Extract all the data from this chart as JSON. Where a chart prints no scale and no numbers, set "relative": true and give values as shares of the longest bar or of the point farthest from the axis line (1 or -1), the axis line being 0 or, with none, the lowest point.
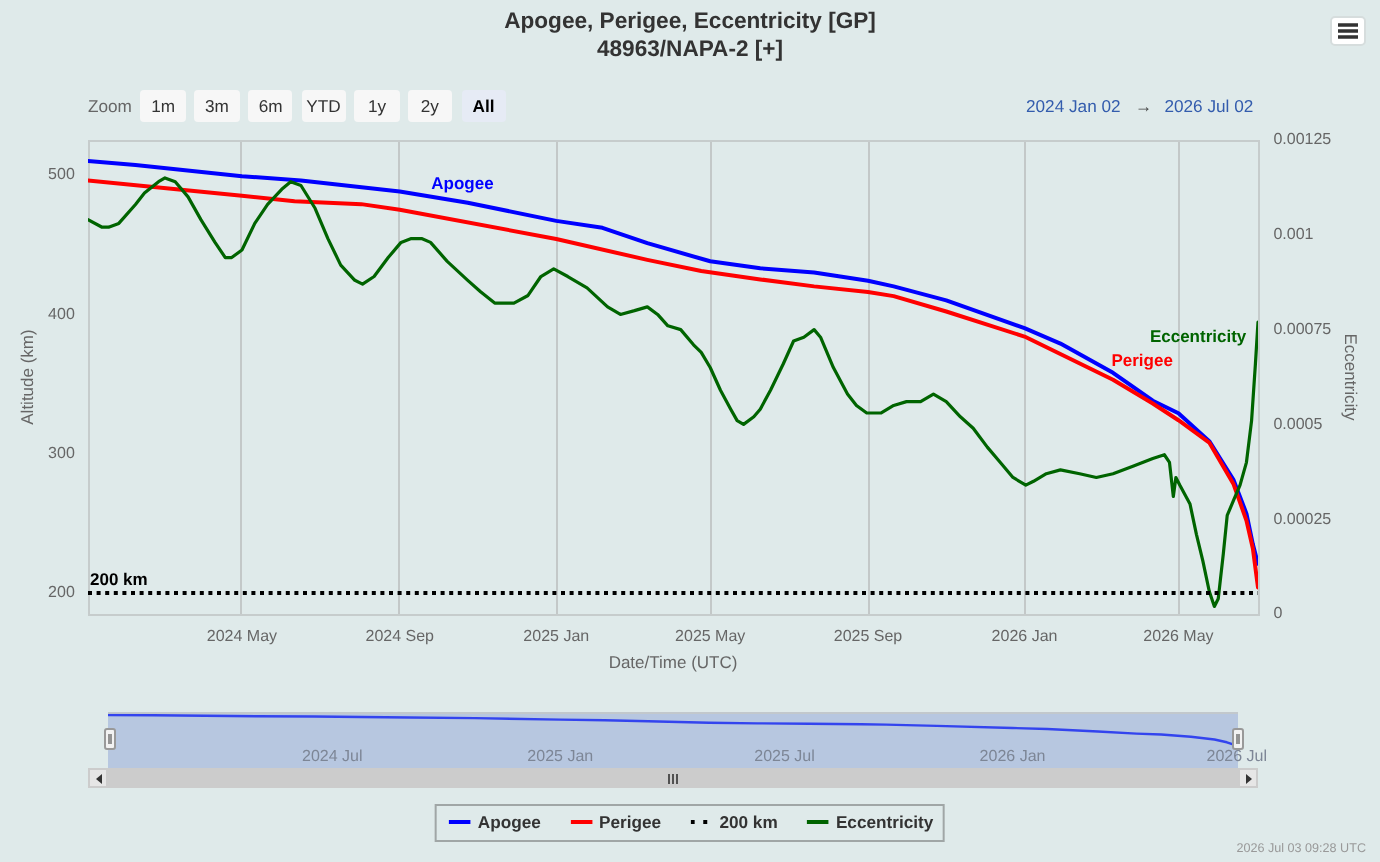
{
  "chart_data": [
    {
      "type": "line",
      "title": "Apogee, Perigee, Eccentricity [GP]",
      "subtitle": "48963/NAPA-2 [+]",
      "xlabel": "Date/Time (UTC)",
      "ylabel": "Altitude (km)",
      "y2label": "Eccentricity",
      "series": [
        {
          "name": "Apogee",
          "color": "#0000ff",
          "x": [
            "2024-01-02",
            "2024-02-08",
            "2024-05-01",
            "2024-06-16",
            "2024-09-01",
            "2024-10-24",
            "2025-01-01",
            "2025-02-06",
            "2025-03-13",
            "2025-05-01",
            "2025-06-09",
            "2025-07-21",
            "2025-09-01",
            "2025-09-21",
            "2025-11-01",
            "2026-01-01",
            "2026-01-29",
            "2026-03-11",
            "2026-04-11",
            "2026-05-01",
            "2026-05-25",
            "2026-06-13",
            "2026-06-23",
            "2026-06-28",
            "2026-07-02"
          ],
          "values": [
            510,
            507,
            499,
            496,
            488,
            480,
            467,
            462,
            451,
            438,
            433,
            430,
            424,
            420,
            410,
            390,
            379,
            358,
            338,
            329,
            309,
            281,
            257,
            235,
            221
          ]
        },
        {
          "name": "Perigee",
          "color": "#ff0000",
          "x": [
            "2024-01-02",
            "2024-05-01",
            "2024-06-11",
            "2024-08-02",
            "2024-09-01",
            "2025-01-01",
            "2025-03-13",
            "2025-04-24",
            "2025-06-09",
            "2025-07-21",
            "2025-09-01",
            "2025-09-21",
            "2025-11-01",
            "2026-01-01",
            "2026-03-11",
            "2026-04-11",
            "2026-05-01",
            "2026-05-25",
            "2026-06-13",
            "2026-06-23",
            "2026-06-28",
            "2026-07-02"
          ],
          "values": [
            496,
            485,
            481,
            479,
            475,
            454,
            439,
            431,
            425,
            420,
            416,
            413,
            402,
            384,
            353,
            336,
            324,
            308,
            278,
            252,
            232,
            204
          ]
        },
        {
          "name": "Eccentricity",
          "color": "#006400",
          "axis": "y2",
          "x": [
            "2024-01-02",
            "2024-01-13",
            "2024-01-18",
            "2024-01-26",
            "2024-02-08",
            "2024-02-15",
            "2024-02-26",
            "2024-03-02",
            "2024-03-10",
            "2024-03-20",
            "2024-03-30",
            "2024-04-10",
            "2024-04-18",
            "2024-04-23",
            "2024-05-01",
            "2024-05-11",
            "2024-05-21",
            "2024-06-01",
            "2024-06-08",
            "2024-06-16",
            "2024-06-27",
            "2024-07-07",
            "2024-07-17",
            "2024-07-28",
            "2024-08-03",
            "2024-08-12",
            "2024-08-23",
            "2024-09-02",
            "2024-09-10",
            "2024-09-18",
            "2024-09-25",
            "2024-10-08",
            "2024-10-24",
            "2024-11-03",
            "2024-11-14",
            "2024-11-29",
            "2024-12-10",
            "2024-12-20",
            "2024-12-30",
            "2025-01-10",
            "2025-01-25",
            "2025-02-10",
            "2025-02-20",
            "2025-03-03",
            "2025-03-13",
            "2025-03-21",
            "2025-03-29",
            "2025-04-08",
            "2025-04-18",
            "2025-04-24",
            "2025-05-01",
            "2025-05-09",
            "2025-05-17",
            "2025-05-22",
            "2025-05-27",
            "2025-06-04",
            "2025-06-09",
            "2025-06-17",
            "2025-06-27",
            "2025-07-05",
            "2025-07-13",
            "2025-07-21",
            "2025-07-26",
            "2025-08-05",
            "2025-08-16",
            "2025-08-23",
            "2025-08-31",
            "2025-09-11",
            "2025-09-21",
            "2025-10-01",
            "2025-10-12",
            "2025-10-22",
            "2025-11-01",
            "2025-11-12",
            "2025-11-22",
            "2025-12-03",
            "2025-12-13",
            "2025-12-23",
            "2026-01-02",
            "2026-01-08",
            "2026-01-18",
            "2026-01-29",
            "2026-02-13",
            "2026-02-26",
            "2026-03-11",
            "2026-03-27",
            "2026-04-11",
            "2026-04-20",
            "2026-04-24",
            "2026-04-27",
            "2026-04-29",
            "2026-05-02",
            "2026-05-10",
            "2026-05-15",
            "2026-05-20",
            "2026-05-25",
            "2026-05-29",
            "2026-06-01",
            "2026-06-05",
            "2026-06-08",
            "2026-06-13",
            "2026-06-18",
            "2026-06-23",
            "2026-06-27",
            "2026-06-30",
            "2026-07-02"
          ],
          "values": [
            0.00104,
            0.00102,
            0.00102,
            0.00103,
            0.00108,
            0.00111,
            0.00114,
            0.00115,
            0.00114,
            0.0011,
            0.00104,
            0.00098,
            0.00094,
            0.00094,
            0.00096,
            0.00103,
            0.00108,
            0.00112,
            0.00114,
            0.00113,
            0.00107,
            0.00099,
            0.00092,
            0.00088,
            0.00087,
            0.00089,
            0.00094,
            0.00098,
            0.00099,
            0.00099,
            0.00098,
            0.00093,
            0.00088,
            0.00085,
            0.00082,
            0.00082,
            0.00084,
            0.00089,
            0.00091,
            0.00089,
            0.00086,
            0.00081,
            0.00079,
            0.0008,
            0.00081,
            0.00079,
            0.00076,
            0.00075,
            0.00071,
            0.00069,
            0.00065,
            0.00059,
            0.00054,
            0.00051,
            0.0005,
            0.00052,
            0.00054,
            0.00059,
            0.00066,
            0.00072,
            0.00073,
            0.00075,
            0.00073,
            0.00065,
            0.00058,
            0.00055,
            0.00053,
            0.00053,
            0.00055,
            0.00056,
            0.00056,
            0.00058,
            0.00056,
            0.00052,
            0.00049,
            0.00044,
            0.0004,
            0.00036,
            0.00034,
            0.00035,
            0.00037,
            0.00038,
            0.00037,
            0.00036,
            0.00037,
            0.00039,
            0.00041,
            0.00042,
            0.0004,
            0.00031,
            0.00036,
            0.00034,
            0.00029,
            0.00021,
            0.00014,
            6e-05,
            2e-05,
            4e-05,
            0.00016,
            0.00026,
            0.0003,
            0.00034,
            0.0004,
            0.00051,
            0.00066,
            0.00077
          ]
        }
      ],
      "xlim": [
        "2024-01-02",
        "2026-07-02"
      ],
      "xticks": [
        {
          "value": "2024-05-01",
          "label": "2024 May"
        },
        {
          "value": "2024-09-01",
          "label": "2024 Sep"
        },
        {
          "value": "2025-01-01",
          "label": "2025 Jan"
        },
        {
          "value": "2025-05-01",
          "label": "2025 May"
        },
        {
          "value": "2025-09-01",
          "label": "2025 Sep"
        },
        {
          "value": "2026-01-01",
          "label": "2026 Jan"
        },
        {
          "value": "2026-05-01",
          "label": "2026 May"
        }
      ],
      "ylim": [
        185,
        525
      ],
      "yticks": [
        200,
        300,
        400,
        500
      ],
      "y2lim": [
        0,
        0.00125
      ],
      "y2ticks": [
        0,
        0.00025,
        0.0005,
        0.00075,
        0.001,
        0.00125
      ],
      "ref_lines": [
        {
          "axis": "y",
          "value": 200,
          "label": "200 km",
          "color": "#000000",
          "line_style": "dotted"
        }
      ],
      "grid": "x",
      "legend": "bottom",
      "annotations": [
        "Zoom",
        "1m",
        "3m",
        "6m",
        "YTD",
        "1y",
        "2y",
        "All",
        "2024 Jan 02",
        "→",
        "2026 Jul 02",
        "2026 Jul 03 09:28 UTC"
      ]
    },
    {
      "type": "line",
      "relative": true,
      "x": [
        "2024-01-02",
        "2024-02-08",
        "2024-05-01",
        "2024-06-16",
        "2024-09-01",
        "2024-10-24",
        "2025-01-01",
        "2025-02-06",
        "2025-03-13",
        "2025-05-01",
        "2025-06-09",
        "2025-07-21",
        "2025-09-01",
        "2025-09-21",
        "2025-11-01",
        "2026-01-01",
        "2026-01-29",
        "2026-03-11",
        "2026-04-11",
        "2026-05-01",
        "2026-05-25",
        "2026-06-13",
        "2026-06-23",
        "2026-06-28",
        "2026-07-02"
      ],
      "series": [
        {
          "color": "#3344ee",
          "values": [
            1,
            0.99,
            0.96,
            0.95,
            0.92,
            0.9,
            0.85,
            0.83,
            0.8,
            0.75,
            0.73,
            0.72,
            0.7,
            0.69,
            0.65,
            0.58,
            0.55,
            0.47,
            0.4,
            0.37,
            0.3,
            0.21,
            0.12,
            0.05,
            0
          ]
        }
      ],
      "xlim": [
        "2024-01-02",
        "2026-07-02"
      ],
      "xticks": [
        {
          "value": "2024-07-01",
          "label": "2024 Jul"
        },
        {
          "value": "2025-01-01",
          "label": "2025 Jan"
        },
        {
          "value": "2025-07-01",
          "label": "2025 Jul"
        },
        {
          "value": "2026-01-01",
          "label": "2026 Jan"
        },
        {
          "value": "2026-07-01",
          "label": "2026 Jul"
        }
      ]
    }
  ]
}
